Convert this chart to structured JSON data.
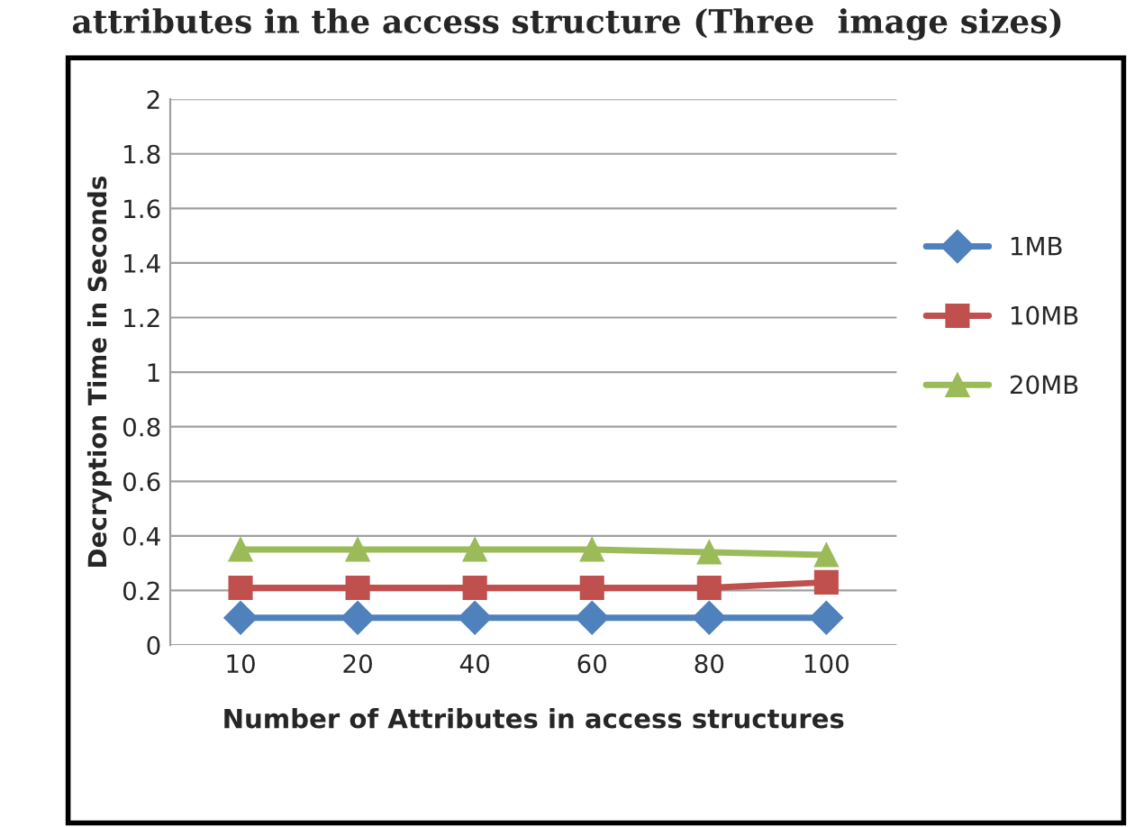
{
  "chart_data": {
    "type": "line",
    "title": "attributes in the access structure (Three  image sizes)",
    "xlabel": "Number of Attributes in access structures",
    "ylabel": "Decryption Time in Seconds",
    "categories": [
      "10",
      "20",
      "40",
      "60",
      "80",
      "100"
    ],
    "series": [
      {
        "name": "1MB",
        "color": "#4f81bd",
        "marker": "diamond",
        "values": [
          0.1,
          0.1,
          0.1,
          0.1,
          0.1,
          0.1
        ]
      },
      {
        "name": "10MB",
        "color": "#c0504d",
        "marker": "square",
        "values": [
          0.21,
          0.21,
          0.21,
          0.21,
          0.21,
          0.23
        ]
      },
      {
        "name": "20MB",
        "color": "#9bbb59",
        "marker": "triangle",
        "values": [
          0.35,
          0.35,
          0.35,
          0.35,
          0.34,
          0.33
        ]
      }
    ],
    "ylim": [
      0,
      2
    ],
    "yticks": [
      0,
      0.2,
      0.4,
      0.6,
      0.8,
      1,
      1.2,
      1.4,
      1.6,
      1.8,
      2
    ],
    "grid": "y",
    "legend": "right",
    "line_style": "solid"
  }
}
